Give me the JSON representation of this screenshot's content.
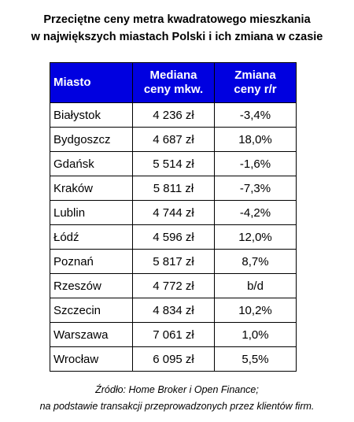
{
  "title": {
    "line1": "Przeciętne ceny metra kwadratowego mieszkania",
    "line2": "w największych miastach Polski i ich zmiana w czasie"
  },
  "table": {
    "headers": {
      "city": "Miasto",
      "price_line1": "Mediana",
      "price_line2": "ceny mkw.",
      "change_line1": "Zmiana",
      "change_line2": "ceny r/r"
    },
    "rows": [
      {
        "city": "Białystok",
        "price": "4 236 zł",
        "change": "-3,4%"
      },
      {
        "city": "Bydgoszcz",
        "price": "4 687 zł",
        "change": "18,0%"
      },
      {
        "city": "Gdańsk",
        "price": "5 514 zł",
        "change": "-1,6%"
      },
      {
        "city": "Kraków",
        "price": "5 811 zł",
        "change": "-7,3%"
      },
      {
        "city": "Lublin",
        "price": "4 744 zł",
        "change": "-4,2%"
      },
      {
        "city": "Łódź",
        "price": "4 596 zł",
        "change": "12,0%"
      },
      {
        "city": "Poznań",
        "price": "5 817 zł",
        "change": "8,7%"
      },
      {
        "city": "Rzeszów",
        "price": "4 772 zł",
        "change": "b/d"
      },
      {
        "city": "Szczecin",
        "price": "4 834 zł",
        "change": "10,2%"
      },
      {
        "city": "Warszawa",
        "price": "7 061 zł",
        "change": "1,0%"
      },
      {
        "city": "Wrocław",
        "price": "6 095 zł",
        "change": "5,5%"
      }
    ]
  },
  "source": {
    "line1": "Źródło: Home Broker i Open Finance;",
    "line2": "na podstawie transakcji przeprowadzonych przez klientów firm."
  },
  "colors": {
    "header_background": "#0000e0",
    "header_text": "#ffffff"
  }
}
